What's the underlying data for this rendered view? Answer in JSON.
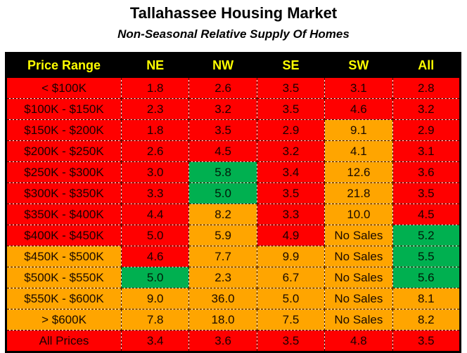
{
  "chart_data": {
    "type": "table",
    "title": "Tallahassee Housing Market",
    "subtitle": "Non-Seasonal Relative Supply Of Homes",
    "columns": [
      "Price Range",
      "NE",
      "NW",
      "SE",
      "SW",
      "All"
    ],
    "colors": {
      "red": "#ff0000",
      "orange": "#ffa500",
      "green": "#00b050",
      "header_bg": "#000000",
      "header_text": "#ffff00"
    },
    "rows": [
      {
        "label": "< $100K",
        "cells": [
          "1.8",
          "2.6",
          "3.5",
          "3.1",
          "2.8"
        ],
        "colors": [
          "red",
          "red",
          "red",
          "red",
          "red"
        ]
      },
      {
        "label": "$100K - $150K",
        "cells": [
          "2.3",
          "3.2",
          "3.5",
          "4.6",
          "3.2"
        ],
        "colors": [
          "red",
          "red",
          "red",
          "red",
          "red"
        ]
      },
      {
        "label": "$150K - $200K",
        "cells": [
          "1.8",
          "3.5",
          "2.9",
          "9.1",
          "2.9"
        ],
        "colors": [
          "red",
          "red",
          "red",
          "orange",
          "red"
        ]
      },
      {
        "label": "$200K - $250K",
        "cells": [
          "2.6",
          "4.5",
          "3.2",
          "4.1",
          "3.1"
        ],
        "colors": [
          "red",
          "red",
          "red",
          "orange",
          "red"
        ]
      },
      {
        "label": "$250K - $300K",
        "cells": [
          "3.0",
          "5.8",
          "3.4",
          "12.6",
          "3.6"
        ],
        "colors": [
          "red",
          "green",
          "red",
          "orange",
          "red"
        ]
      },
      {
        "label": "$300K - $350K",
        "cells": [
          "3.3",
          "5.0",
          "3.5",
          "21.8",
          "3.5"
        ],
        "colors": [
          "red",
          "green",
          "red",
          "orange",
          "red"
        ]
      },
      {
        "label": "$350K - $400K",
        "cells": [
          "4.4",
          "8.2",
          "3.3",
          "10.0",
          "4.5"
        ],
        "colors": [
          "red",
          "orange",
          "red",
          "orange",
          "red"
        ]
      },
      {
        "label": "$400K - $450K",
        "cells": [
          "5.0",
          "5.9",
          "4.9",
          "No Sales",
          "5.2"
        ],
        "colors": [
          "red",
          "orange",
          "red",
          "orange",
          "green"
        ]
      },
      {
        "label": "$450K - $500K",
        "cells": [
          "4.6",
          "7.7",
          "9.9",
          "No Sales",
          "5.5"
        ],
        "colors": [
          "red",
          "orange",
          "orange",
          "orange",
          "green"
        ]
      },
      {
        "label": "$500K - $550K",
        "cells": [
          "5.0",
          "2.3",
          "6.7",
          "No Sales",
          "5.6"
        ],
        "colors": [
          "green",
          "orange",
          "orange",
          "orange",
          "green"
        ]
      },
      {
        "label": "$550K - $600K",
        "cells": [
          "9.0",
          "36.0",
          "5.0",
          "No Sales",
          "8.1"
        ],
        "colors": [
          "orange",
          "orange",
          "orange",
          "orange",
          "orange"
        ]
      },
      {
        "label": "> $600K",
        "cells": [
          "7.8",
          "18.0",
          "7.5",
          "No Sales",
          "8.2"
        ],
        "colors": [
          "orange",
          "orange",
          "orange",
          "orange",
          "orange"
        ]
      },
      {
        "label": "All Prices",
        "cells": [
          "3.4",
          "3.6",
          "3.5",
          "4.8",
          "3.5"
        ],
        "colors": [
          "red",
          "red",
          "red",
          "red",
          "red"
        ]
      }
    ],
    "label_colors": [
      "red",
      "red",
      "red",
      "red",
      "red",
      "red",
      "red",
      "red",
      "orange",
      "orange",
      "orange",
      "orange",
      "red"
    ]
  }
}
